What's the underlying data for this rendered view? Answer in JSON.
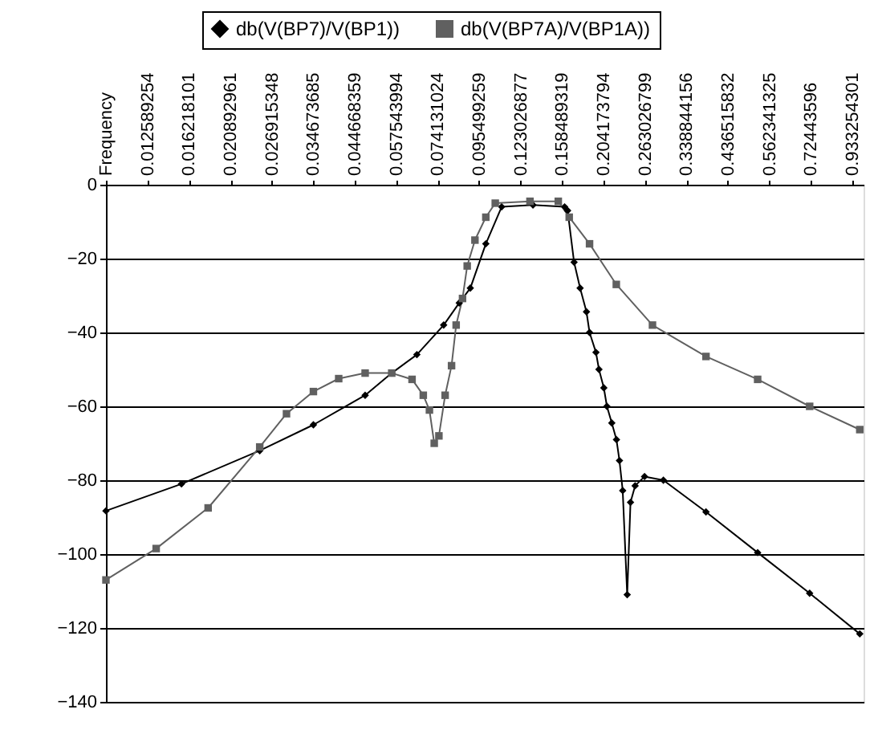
{
  "chart_data": {
    "type": "line",
    "log": "x",
    "grid": "y",
    "legend": "top",
    "xlim": [
      0.00977,
      1.0
    ],
    "ylim": [
      -140,
      0
    ],
    "yticks": [
      -140,
      -120,
      -100,
      -80,
      -60,
      -40,
      -20,
      0
    ],
    "xticks": [
      {
        "value": 0.00977,
        "label": "Frequency"
      },
      0.012589254,
      0.016218101,
      0.020892961,
      0.026915348,
      0.034673685,
      0.044668359,
      0.057543994,
      0.074131024,
      0.095499259,
      0.123026877,
      0.158489319,
      0.204173794,
      0.263026799,
      0.338844156,
      0.436515832,
      0.562341325,
      0.72443596,
      0.933254301
    ],
    "series": [
      {
        "name": "db(V(BP7)/V(BP1))",
        "color": "#000000",
        "marker": "diamond",
        "x": [
          0.00977,
          0.0155,
          0.025,
          0.0347,
          0.0476,
          0.056,
          0.0653,
          0.0769,
          0.0846,
          0.0905,
          0.0995,
          0.1096,
          0.1327,
          0.161,
          0.164,
          0.1706,
          0.177,
          0.184,
          0.1875,
          0.195,
          0.1986,
          0.2046,
          0.2085,
          0.2148,
          0.221,
          0.2251,
          0.2296,
          0.236,
          0.2408,
          0.2477,
          0.2624,
          0.2944,
          0.3819,
          0.5236,
          0.7194,
          0.9772
        ],
        "values": [
          -88.3,
          -81,
          -72,
          -65,
          -57,
          -51,
          -46,
          -38,
          -32,
          -28,
          -16,
          -6,
          -5.5,
          -6,
          -7,
          -21,
          -28,
          -34.4,
          -40,
          -45.4,
          -50,
          -55,
          -60,
          -64.5,
          -69,
          -74.7,
          -82.8,
          -111,
          -86,
          -81.5,
          -79,
          -80,
          -88.6,
          -99.6,
          -110.6,
          -121.6
        ]
      },
      {
        "name": "db(V(BP7A)/V(BP1A))",
        "color": "#606060",
        "marker": "square",
        "x": [
          0.00977,
          0.01328,
          0.01824,
          0.025,
          0.02944,
          0.0347,
          0.0405,
          0.0476,
          0.056,
          0.0634,
          0.0679,
          0.0705,
          0.0726,
          0.0747,
          0.0776,
          0.0807,
          0.083,
          0.0863,
          0.0888,
          0.0931,
          0.0995,
          0.1054,
          0.1303,
          0.1549,
          0.1656,
          0.1875,
          0.2208,
          0.2754,
          0.3819,
          0.5236,
          0.7194,
          0.9772
        ],
        "values": [
          -107,
          -98.5,
          -87.5,
          -71,
          -62,
          -56,
          -52.5,
          -51,
          -51,
          -52.7,
          -57,
          -61,
          -70,
          -68,
          -57,
          -49,
          -38,
          -30.8,
          -22,
          -15,
          -8.8,
          -5,
          -4.5,
          -4.5,
          -8.8,
          -16,
          -27,
          -38,
          -46.5,
          -52.7,
          -60,
          -66.3
        ]
      }
    ]
  }
}
